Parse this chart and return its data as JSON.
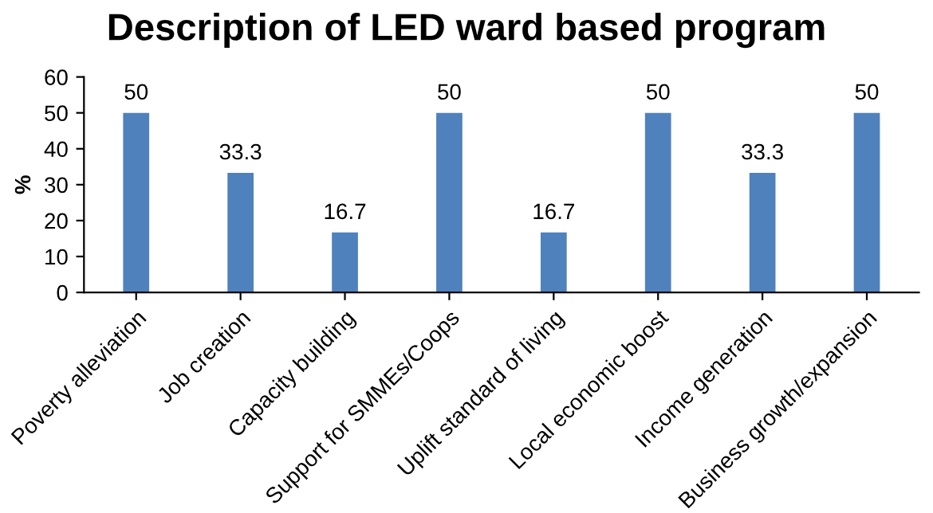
{
  "chart_data": {
    "type": "bar",
    "title": "Description of LED ward based program",
    "ylabel": "%",
    "categories": [
      "Poverty alleviation",
      "Job creation",
      "Capacity building",
      "Support for SMMEs/Coops",
      "Uplift standard of living",
      "Local economic boost",
      "Income generation",
      "Business growth/expansion"
    ],
    "values": [
      50,
      33.3,
      16.7,
      50,
      16.7,
      50,
      33.3,
      50
    ],
    "color": "#4f81bd",
    "ylim": [
      0,
      60
    ],
    "yticks": [
      0,
      10,
      20,
      30,
      40,
      50,
      60
    ],
    "grid": false,
    "data_labels": true
  }
}
